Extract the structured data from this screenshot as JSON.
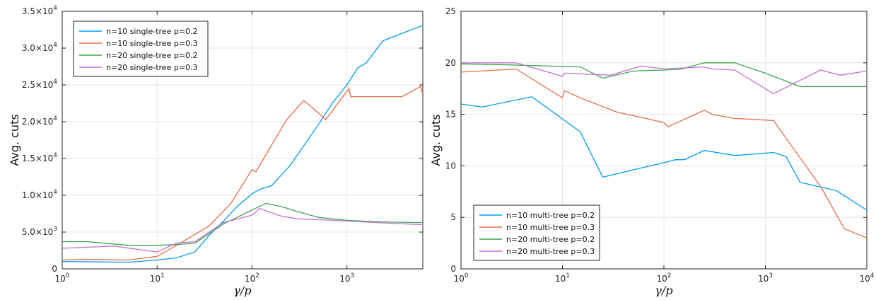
{
  "chart_data": [
    {
      "type": "line",
      "xscale": "log",
      "xlim": [
        1,
        6300
      ],
      "ylim": [
        0,
        35000
      ],
      "xlabel": "γ/p",
      "ylabel": "Avg. cuts",
      "xticks": [
        {
          "value": 1,
          "base": "10",
          "exp": "0"
        },
        {
          "value": 10,
          "base": "10",
          "exp": "1"
        },
        {
          "value": 100,
          "base": "10",
          "exp": "2"
        },
        {
          "value": 1000,
          "base": "10",
          "exp": "3"
        }
      ],
      "yticks": [
        {
          "value": 0,
          "mant": "0",
          "exp": ""
        },
        {
          "value": 5000,
          "mant": "5.0×10",
          "exp": "3"
        },
        {
          "value": 10000,
          "mant": "1.0×10",
          "exp": "4"
        },
        {
          "value": 15000,
          "mant": "1.5×10",
          "exp": "4"
        },
        {
          "value": 20000,
          "mant": "2.0×10",
          "exp": "4"
        },
        {
          "value": 25000,
          "mant": "2.5×10",
          "exp": "4"
        },
        {
          "value": 30000,
          "mant": "3.0×10",
          "exp": "4"
        },
        {
          "value": 35000,
          "mant": "3.5×10",
          "exp": "4"
        }
      ],
      "legend_position": "top-left",
      "series": [
        {
          "name": "n=10 single-tree p=0.2",
          "color": "#009AFA",
          "x": [
            1,
            5,
            10,
            16,
            25,
            35,
            50,
            70,
            100,
            120,
            160,
            250,
            500,
            700,
            1000,
            1300,
            1600,
            2400,
            6300
          ],
          "y": [
            1000,
            900,
            1200,
            1500,
            2300,
            4500,
            6500,
            8500,
            10200,
            10800,
            11300,
            14000,
            19600,
            22500,
            25000,
            27300,
            28000,
            31000,
            33100
          ]
        },
        {
          "name": "n=10 single-tree p=0.3",
          "color": "#E26F46",
          "x": [
            1,
            1.6,
            5,
            10,
            16,
            35,
            60,
            100,
            110,
            230,
            350,
            600,
            1050,
            1100,
            3800,
            6000,
            6300
          ],
          "y": [
            1200,
            1300,
            1200,
            1700,
            3200,
            5800,
            8900,
            13500,
            13200,
            20200,
            22900,
            20300,
            24500,
            23400,
            23400,
            24800,
            23700
          ]
        },
        {
          "name": "n=20 single-tree p=0.2",
          "color": "#3EA44E",
          "x": [
            1,
            1.8,
            5,
            10,
            16,
            25,
            50,
            100,
            140,
            200,
            300,
            500,
            1000,
            2000,
            5000,
            6300
          ],
          "y": [
            3700,
            3700,
            3200,
            3200,
            3300,
            3500,
            6100,
            8000,
            8900,
            8500,
            7800,
            7000,
            6600,
            6400,
            6300,
            6300
          ]
        },
        {
          "name": "n=20 single-tree p=0.3",
          "color": "#C271D2",
          "x": [
            1,
            3.5,
            10,
            16,
            25,
            50,
            100,
            120,
            200,
            300,
            500,
            1000,
            2000,
            6300
          ],
          "y": [
            2800,
            3100,
            2300,
            3500,
            3700,
            6300,
            7300,
            8200,
            7200,
            6800,
            6700,
            6500,
            6300,
            6000
          ]
        }
      ]
    },
    {
      "type": "line",
      "xscale": "log",
      "xlim": [
        1,
        10000
      ],
      "ylim": [
        0,
        25
      ],
      "xlabel": "γ/p",
      "ylabel": "Avg. cuts",
      "xticks": [
        {
          "value": 1,
          "base": "10",
          "exp": "0"
        },
        {
          "value": 10,
          "base": "10",
          "exp": "1"
        },
        {
          "value": 100,
          "base": "10",
          "exp": "2"
        },
        {
          "value": 1000,
          "base": "10",
          "exp": "3"
        },
        {
          "value": 10000,
          "base": "10",
          "exp": "4"
        }
      ],
      "yticks": [
        {
          "value": 0,
          "mant": "0",
          "exp": ""
        },
        {
          "value": 5,
          "mant": "5",
          "exp": ""
        },
        {
          "value": 10,
          "mant": "10",
          "exp": ""
        },
        {
          "value": 15,
          "mant": "15",
          "exp": ""
        },
        {
          "value": 20,
          "mant": "20",
          "exp": ""
        },
        {
          "value": 25,
          "mant": "25",
          "exp": ""
        }
      ],
      "legend_position": "bottom-left",
      "series": [
        {
          "name": "n=10 multi-tree p=0.2",
          "color": "#009AFA",
          "x": [
            1,
            1.6,
            5,
            15,
            25,
            60,
            100,
            130,
            160,
            250,
            500,
            1200,
            1600,
            2200,
            5000,
            10000
          ],
          "y": [
            16,
            15.7,
            16.7,
            13.3,
            8.9,
            9.8,
            10.3,
            10.6,
            10.6,
            11.5,
            11,
            11.3,
            10.9,
            8.4,
            7.6,
            5.7
          ]
        },
        {
          "name": "n=10 multi-tree p=0.3",
          "color": "#E26F46",
          "x": [
            1,
            3.5,
            10,
            10.5,
            15,
            35,
            60,
            100,
            110,
            250,
            300,
            500,
            1200,
            3500,
            6000,
            10000
          ],
          "y": [
            19.1,
            19.4,
            16.6,
            17.3,
            16.6,
            15.2,
            14.7,
            14.2,
            13.8,
            15.4,
            15,
            14.6,
            14.4,
            8,
            3.9,
            3
          ]
        },
        {
          "name": "n=20 multi-tree p=0.2",
          "color": "#3EA44E",
          "x": [
            1,
            3,
            15,
            25,
            50,
            100,
            150,
            250,
            500,
            1000,
            2200,
            10000
          ],
          "y": [
            19.9,
            19.8,
            19.6,
            18.5,
            19.2,
            19.3,
            19.4,
            20,
            20,
            19,
            17.7,
            17.7
          ]
        },
        {
          "name": "n=20 multi-tree p=0.3",
          "color": "#C271D2",
          "x": [
            1,
            3.5,
            10,
            10.5,
            30,
            60,
            100,
            150,
            250,
            300,
            500,
            1200,
            3500,
            5500,
            10000
          ],
          "y": [
            20,
            20,
            18.7,
            19,
            18.8,
            19.7,
            19.4,
            19.5,
            19.6,
            19.4,
            19.3,
            17,
            19.3,
            18.8,
            19.2
          ]
        }
      ]
    }
  ]
}
